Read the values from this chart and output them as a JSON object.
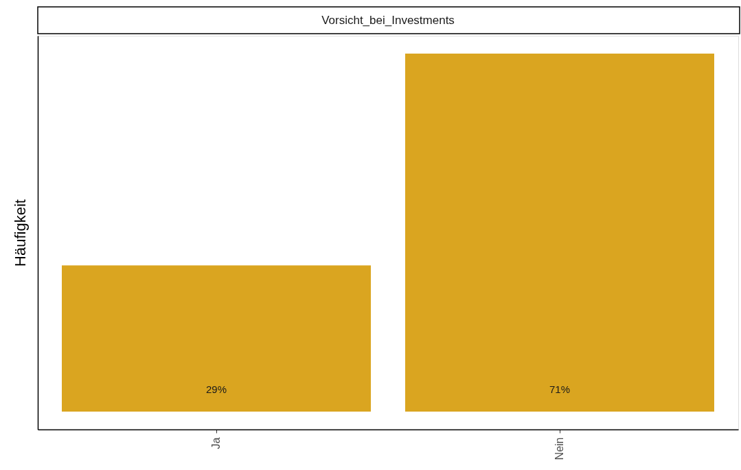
{
  "chart_data": {
    "type": "bar",
    "title": "Vorsicht_bei_Investments",
    "ylabel": "Häufigkeit",
    "categories": [
      "Ja",
      "Nein"
    ],
    "values": [
      29,
      71
    ],
    "color": "#daa520",
    "value_labels": [
      "29%",
      "71%"
    ],
    "ylim": [
      -3.55,
      74.55
    ]
  }
}
